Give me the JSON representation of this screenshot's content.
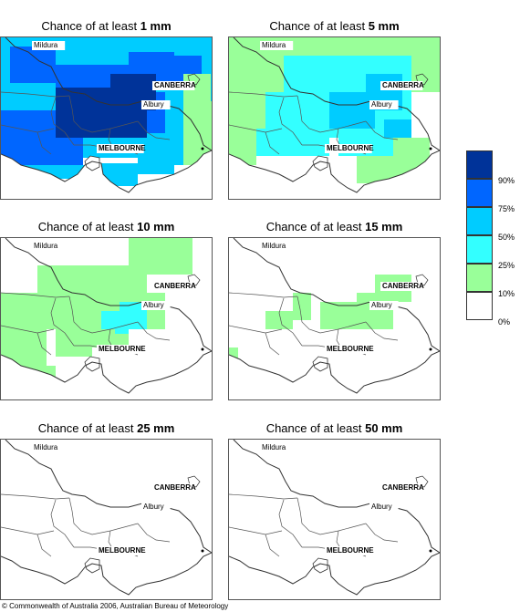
{
  "panels": [
    {
      "title_prefix": "Chance of at least ",
      "threshold": "1 mm"
    },
    {
      "title_prefix": "Chance of at least ",
      "threshold": "5 mm"
    },
    {
      "title_prefix": "Chance of at least ",
      "threshold": "10 mm"
    },
    {
      "title_prefix": "Chance of at least ",
      "threshold": "15 mm"
    },
    {
      "title_prefix": "Chance of at least ",
      "threshold": "25 mm"
    },
    {
      "title_prefix": "Chance of at least ",
      "threshold": "50 mm"
    }
  ],
  "places": {
    "mildura": "Mildura",
    "canberra": "CANBERRA",
    "albury": "Albury",
    "melbourne": "MELBOURNE"
  },
  "legend": {
    "colors": [
      "#003399",
      "#0066ff",
      "#00ccff",
      "#33ffff",
      "#99ff99",
      "#ffffff"
    ],
    "ticks": [
      "90%",
      "75%",
      "50%",
      "25%",
      "10%",
      "0%"
    ]
  },
  "colors": {
    "c90": "#003399",
    "c75": "#0066ff",
    "c50": "#00ccff",
    "c25": "#33ffff",
    "c10": "#99ff99",
    "c0": "#ffffff"
  },
  "copyright": "© Commonwealth of Australia 2006, Australian Bureau of Meteorology"
}
